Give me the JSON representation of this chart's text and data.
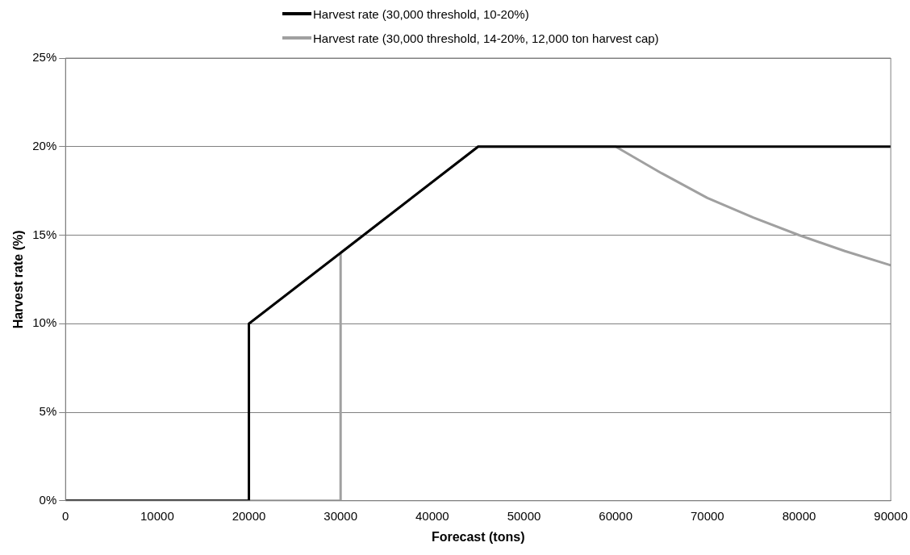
{
  "chart_data": {
    "type": "line",
    "xlabel": "Forecast (tons)",
    "ylabel": "Harvest rate (%)",
    "series": [
      {
        "name": "Harvest rate (30,000 threshold, 10-20%)",
        "color": "#000000",
        "x": [
          0,
          20000,
          20000,
          30000,
          45000,
          90000
        ],
        "values": [
          0,
          0,
          10,
          14,
          20,
          20
        ]
      },
      {
        "name": "Harvest rate (30,000 threshold, 14-20%, 12,000 ton harvest cap)",
        "color": "#a0a0a0",
        "x": [
          0,
          30000,
          30000,
          45000,
          60000,
          65000,
          70000,
          75000,
          80000,
          85000,
          90000
        ],
        "values": [
          0,
          0,
          14,
          20,
          20,
          18.5,
          17.1,
          16,
          15,
          14.1,
          13.3
        ]
      }
    ],
    "xlim": [
      0,
      90000
    ],
    "xticks": [
      0,
      10000,
      20000,
      30000,
      40000,
      50000,
      60000,
      70000,
      80000,
      90000
    ],
    "ylim": [
      0,
      25
    ],
    "yticks": [
      {
        "value": 0,
        "label": "0%"
      },
      {
        "value": 5,
        "label": "5%"
      },
      {
        "value": 10,
        "label": "10%"
      },
      {
        "value": 15,
        "label": "15%"
      },
      {
        "value": 20,
        "label": "20%"
      },
      {
        "value": 25,
        "label": "25%"
      }
    ],
    "grid": "y",
    "legend": "top",
    "marker": "none",
    "line_style": "solid"
  }
}
